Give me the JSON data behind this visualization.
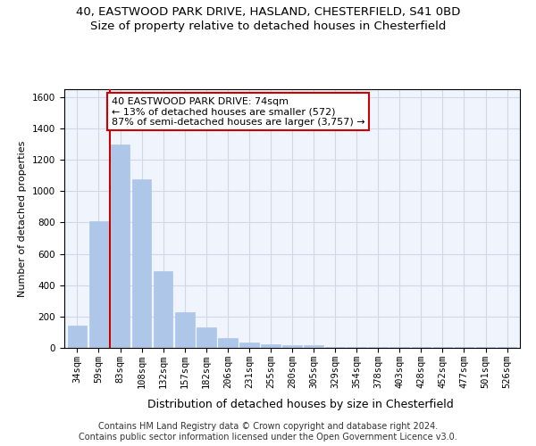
{
  "title_line1": "40, EASTWOOD PARK DRIVE, HASLAND, CHESTERFIELD, S41 0BD",
  "title_line2": "Size of property relative to detached houses in Chesterfield",
  "xlabel": "Distribution of detached houses by size in Chesterfield",
  "ylabel": "Number of detached properties",
  "footer_line1": "Contains HM Land Registry data © Crown copyright and database right 2024.",
  "footer_line2": "Contains public sector information licensed under the Open Government Licence v3.0.",
  "categories": [
    "34sqm",
    "59sqm",
    "83sqm",
    "108sqm",
    "132sqm",
    "157sqm",
    "182sqm",
    "206sqm",
    "231sqm",
    "255sqm",
    "280sqm",
    "305sqm",
    "329sqm",
    "354sqm",
    "378sqm",
    "403sqm",
    "428sqm",
    "452sqm",
    "477sqm",
    "501sqm",
    "526sqm"
  ],
  "values": [
    140,
    810,
    1300,
    1075,
    490,
    230,
    130,
    65,
    35,
    22,
    15,
    15,
    5,
    5,
    5,
    5,
    5,
    5,
    5,
    5,
    5
  ],
  "bar_color": "#aec6e8",
  "bar_edge_color": "#aec6e8",
  "vline_x": 1.5,
  "vline_color": "#cc0000",
  "annotation_text": "40 EASTWOOD PARK DRIVE: 74sqm\n← 13% of detached houses are smaller (572)\n87% of semi-detached houses are larger (3,757) →",
  "annotation_box_edge_color": "#cc0000",
  "annotation_box_face_color": "white",
  "ylim": [
    0,
    1650
  ],
  "yticks": [
    0,
    200,
    400,
    600,
    800,
    1000,
    1200,
    1400,
    1600
  ],
  "grid_color": "#d0d8e8",
  "background_color": "#f0f4fc",
  "title1_fontsize": 9.5,
  "title2_fontsize": 9.5,
  "xlabel_fontsize": 9,
  "ylabel_fontsize": 8,
  "tick_fontsize": 7.5,
  "footer_fontsize": 7,
  "annot_fontsize": 8
}
